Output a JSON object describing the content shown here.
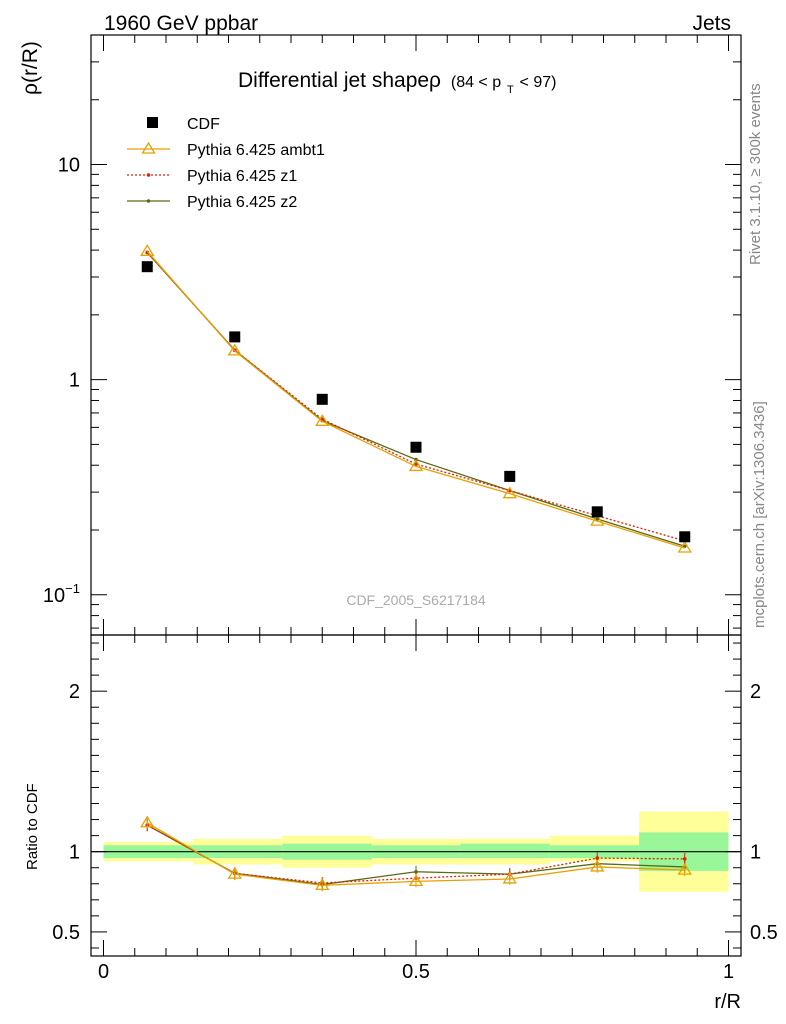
{
  "header": {
    "left": "1960 GeV ppbar",
    "right": "Jets"
  },
  "side": {
    "rivet": "Rivet 3.1.10, ≥ 300k events",
    "mcplots": "mcplots.cern.ch [arXiv:1306.3436]"
  },
  "watermark": "CDF_2005_S6217184",
  "colors": {
    "cdf": "#000000",
    "ambt1": "#e8a000",
    "z1": "#e02000",
    "z2": "#5a6a10",
    "band_inner": "#99f799",
    "band_outer": "#ffff99"
  },
  "chart_data": [
    {
      "type": "line",
      "title": "Differential jet shapeρ",
      "title_suffix": "(84 < p",
      "title_sub": "T",
      "title_end": " < 97)",
      "xlabel": "",
      "ylabel": "ρ(r/R)",
      "yscale": "log",
      "xlim": [
        -0.02,
        1.02
      ],
      "ylim": [
        0.065,
        40
      ],
      "yticks": [
        {
          "v": 10,
          "label": "10"
        },
        {
          "v": 1,
          "label": "1"
        },
        {
          "v": 0.1,
          "label": "10",
          "sup": "−1"
        }
      ],
      "x": [
        0.07,
        0.21,
        0.35,
        0.5,
        0.65,
        0.79,
        0.93
      ],
      "series": [
        {
          "name": "CDF",
          "style": "square",
          "values": [
            3.35,
            1.58,
            0.81,
            0.485,
            0.355,
            0.243,
            0.186
          ]
        },
        {
          "name": "Pythia 6.425 ambt1",
          "style": "triangle",
          "values": [
            3.95,
            1.36,
            0.64,
            0.395,
            0.295,
            0.22,
            0.165
          ]
        },
        {
          "name": "Pythia 6.425 z1",
          "style": "dotted",
          "values": [
            3.9,
            1.37,
            0.655,
            0.405,
            0.305,
            0.233,
            0.178
          ]
        },
        {
          "name": "Pythia 6.425 z2",
          "style": "solid-dot",
          "values": [
            3.9,
            1.37,
            0.645,
            0.425,
            0.305,
            0.225,
            0.168
          ]
        }
      ],
      "legend": "top-left"
    },
    {
      "type": "line",
      "xlabel": "r/R",
      "ylabel": "Ratio to CDF",
      "ylim": [
        0.35,
        2.35
      ],
      "xlim": [
        -0.02,
        1.02
      ],
      "yticks": [
        {
          "v": 0.5,
          "label": "0.5"
        },
        {
          "v": 1,
          "label": "1"
        },
        {
          "v": 2,
          "label": "2"
        }
      ],
      "xticks": [
        {
          "v": 0,
          "label": "0"
        },
        {
          "v": 0.5,
          "label": "0.5"
        },
        {
          "v": 1,
          "label": "1"
        }
      ],
      "x": [
        0.07,
        0.21,
        0.35,
        0.5,
        0.65,
        0.79,
        0.93
      ],
      "bands": [
        {
          "x0": 0.0,
          "x1": 0.143,
          "inner": [
            0.96,
            1.04
          ],
          "outer": [
            0.94,
            1.06
          ]
        },
        {
          "x0": 0.143,
          "x1": 0.286,
          "inner": [
            0.96,
            1.04
          ],
          "outer": [
            0.92,
            1.08
          ]
        },
        {
          "x0": 0.286,
          "x1": 0.429,
          "inner": [
            0.95,
            1.05
          ],
          "outer": [
            0.9,
            1.1
          ]
        },
        {
          "x0": 0.429,
          "x1": 0.571,
          "inner": [
            0.96,
            1.04
          ],
          "outer": [
            0.92,
            1.08
          ]
        },
        {
          "x0": 0.571,
          "x1": 0.714,
          "inner": [
            0.96,
            1.05
          ],
          "outer": [
            0.92,
            1.08
          ]
        },
        {
          "x0": 0.714,
          "x1": 0.857,
          "inner": [
            0.96,
            1.04
          ],
          "outer": [
            0.94,
            1.1
          ]
        },
        {
          "x0": 0.857,
          "x1": 1.0,
          "inner": [
            0.88,
            1.12
          ],
          "outer": [
            0.75,
            1.25
          ]
        }
      ],
      "series": [
        {
          "name": "Pythia 6.425 ambt1",
          "style": "triangle",
          "values": [
            1.18,
            0.86,
            0.79,
            0.815,
            0.83,
            0.905,
            0.885
          ]
        },
        {
          "name": "Pythia 6.425 z1",
          "style": "dotted",
          "values": [
            1.165,
            0.865,
            0.805,
            0.835,
            0.86,
            0.96,
            0.955
          ]
        },
        {
          "name": "Pythia 6.425 z2",
          "style": "solid-dot",
          "values": [
            1.165,
            0.865,
            0.795,
            0.875,
            0.86,
            0.925,
            0.905
          ]
        }
      ]
    }
  ]
}
